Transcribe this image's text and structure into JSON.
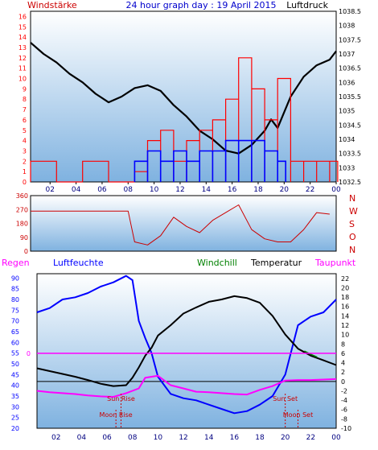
{
  "colors": {
    "wind": "#ff0000",
    "pressure": "#000000",
    "gust": "#0000ff",
    "title": "#0000cc",
    "direction": "#cc0000",
    "humidity": "#0000ff",
    "temperature": "#000000",
    "windchill": "#008000",
    "dewpoint": "#ff00ff",
    "rain": "#ff00ff",
    "panel_top": "#ffffff",
    "panel_bottom": "#7fb2e0"
  },
  "chart_data": [
    {
      "type": "line",
      "title": "24 hour graph day : 19 April 2015",
      "ylabel_left": "Windstärke",
      "ylabel_right": "Luftdruck",
      "x_ticks": [
        "02",
        "04",
        "06",
        "08",
        "10",
        "12",
        "14",
        "16",
        "18",
        "20",
        "22",
        "00"
      ],
      "y_left_ticks": [
        0,
        1,
        2,
        3,
        4,
        5,
        6,
        7,
        8,
        9,
        10,
        11,
        12,
        13,
        14,
        15,
        16
      ],
      "y_right_ticks": [
        "1032.5",
        "1033",
        "1033.5",
        "1034",
        "1034.5",
        "1035",
        "1035.5",
        "1036",
        "1036.5",
        "1037",
        "1037.5",
        "1038",
        "1038.5"
      ],
      "ylim_left": [
        0,
        16.5
      ],
      "ylim_right": [
        1032.5,
        1038.5
      ],
      "xlim": [
        0.5,
        24
      ],
      "series": [
        {
          "name": "Luftdruck",
          "axis": "right",
          "x": [
            0.5,
            1.5,
            2.5,
            3.5,
            4.5,
            5.5,
            6.5,
            7.5,
            8.5,
            9.5,
            10.5,
            11.5,
            12.5,
            13.5,
            14.5,
            15.5,
            16.5,
            17.5,
            18.5,
            19,
            19.5,
            20.5,
            21.5,
            22.5,
            23.5,
            24
          ],
          "values": [
            1037.4,
            1037.0,
            1036.7,
            1036.3,
            1036.0,
            1035.6,
            1035.3,
            1035.5,
            1035.8,
            1035.9,
            1035.7,
            1035.2,
            1034.8,
            1034.3,
            1034.0,
            1033.6,
            1033.5,
            1033.8,
            1034.3,
            1034.7,
            1034.4,
            1035.5,
            1036.2,
            1036.6,
            1036.8,
            1037.1
          ]
        },
        {
          "name": "Windstärke",
          "axis": "left",
          "x": [
            0.5,
            2.5,
            4.5,
            6.5,
            8.5,
            9.5,
            10.5,
            11.5,
            12.5,
            13.5,
            14.5,
            15.5,
            16.5,
            17.5,
            18.5,
            19.5,
            20.5,
            21.5,
            22.5,
            23.5
          ],
          "values": [
            2,
            0,
            2,
            0,
            1,
            4,
            5,
            2,
            4,
            5,
            6,
            8,
            12,
            9,
            6,
            10,
            2,
            2,
            2,
            2
          ]
        },
        {
          "name": "Windböen",
          "axis": "left",
          "x": [
            8.5,
            9.5,
            10.5,
            11.5,
            12.5,
            13.5,
            14.5,
            15.5,
            16.5,
            17.5,
            18.5,
            19.5
          ],
          "values": [
            2,
            3,
            2,
            3,
            2,
            3,
            3,
            4,
            4,
            4,
            3,
            2
          ]
        }
      ]
    },
    {
      "type": "scatter",
      "title": "",
      "ylabel_right": [
        "N",
        "W",
        "S",
        "O",
        "N"
      ],
      "y_ticks": [
        0,
        90,
        180,
        270,
        360
      ],
      "ylim": [
        0,
        360
      ],
      "xlim": [
        0.5,
        24
      ],
      "series": [
        {
          "name": "Windrichtung",
          "x": [
            0.5,
            2.5,
            4.5,
            6.5,
            8,
            8.5,
            9.5,
            10.5,
            11.5,
            12.5,
            13.5,
            14.5,
            15.5,
            16.5,
            17.5,
            18.5,
            19.5,
            20.5,
            21.5,
            22.5,
            23.5
          ],
          "values": [
            260,
            260,
            260,
            260,
            260,
            60,
            40,
            100,
            220,
            160,
            120,
            200,
            250,
            300,
            140,
            80,
            60,
            60,
            140,
            250,
            240
          ]
        }
      ]
    },
    {
      "type": "line",
      "title": "",
      "legend": [
        "Regen",
        "Luftfeuchte",
        "Windchill",
        "Temperatur",
        "Taupunkt"
      ],
      "y_left_ticks": [
        20,
        25,
        30,
        35,
        40,
        45,
        50,
        55,
        60,
        65,
        70,
        75,
        80,
        85,
        90
      ],
      "y_right_ticks": [
        -10,
        -8,
        -6,
        -4,
        -2,
        0,
        2,
        4,
        6,
        8,
        10,
        12,
        14,
        16,
        18,
        20,
        22
      ],
      "ylim_left": [
        20,
        92
      ],
      "ylim_right": [
        -10,
        23
      ],
      "xlim": [
        0.5,
        24
      ],
      "annotations": [
        "Sun Rise",
        "Moon Rise",
        "Sun Set",
        "Moon Set"
      ],
      "rain_label": "0",
      "series": [
        {
          "name": "Luftfeuchte",
          "axis": "left",
          "x": [
            0.5,
            1.5,
            2.5,
            3.5,
            4.5,
            5.5,
            6.5,
            7.5,
            8,
            8.5,
            9,
            9.5,
            10,
            11,
            12,
            13,
            14,
            15,
            16,
            17,
            18,
            19,
            20,
            21,
            22,
            23,
            24
          ],
          "values": [
            74,
            76,
            80,
            81,
            83,
            86,
            88,
            91,
            89,
            70,
            62,
            55,
            44,
            36,
            34,
            33,
            31,
            29,
            27,
            28,
            31,
            35,
            45,
            68,
            72,
            74,
            80
          ]
        },
        {
          "name": "Temperatur",
          "axis": "right",
          "x": [
            0.5,
            1.5,
            2.5,
            3.5,
            4.5,
            5.5,
            6.5,
            7.5,
            8,
            8.5,
            9,
            9.5,
            10,
            11,
            12,
            13,
            14,
            15,
            16,
            17,
            18,
            19,
            20,
            21,
            22,
            23,
            24
          ],
          "values": [
            2.8,
            2.2,
            1.6,
            1.0,
            0.3,
            -0.5,
            -1.0,
            -0.8,
            0.8,
            3.0,
            5.5,
            7.2,
            9.8,
            12.0,
            14.5,
            15.8,
            17.0,
            17.5,
            18.2,
            17.8,
            16.8,
            14.0,
            10.0,
            7.0,
            5.5,
            4.5,
            3.5
          ]
        },
        {
          "name": "Windchill",
          "axis": "right",
          "x": [
            21.5,
            22,
            22.5
          ],
          "values": [
            6.5,
            5.8,
            5.2
          ]
        },
        {
          "name": "Taupunkt",
          "axis": "right",
          "x": [
            0.5,
            1.5,
            2.5,
            3.5,
            4.5,
            5.5,
            6.5,
            7.5,
            8.5,
            9,
            10,
            11,
            12,
            13,
            14,
            15,
            16,
            17,
            18,
            19,
            20,
            21,
            22,
            23,
            24
          ],
          "values": [
            -2.0,
            -2.3,
            -2.5,
            -2.7,
            -3.0,
            -3.2,
            -3.3,
            -2.5,
            -1.5,
            0.8,
            1.2,
            -0.8,
            -1.5,
            -2.2,
            -2.3,
            -2.5,
            -2.7,
            -2.8,
            -1.8,
            -1.0,
            0.2,
            0.3,
            0.3,
            0.4,
            0.5
          ]
        },
        {
          "name": "Regen",
          "axis": "rain",
          "x": [
            0.5,
            24
          ],
          "values": [
            0,
            0
          ]
        }
      ]
    }
  ]
}
